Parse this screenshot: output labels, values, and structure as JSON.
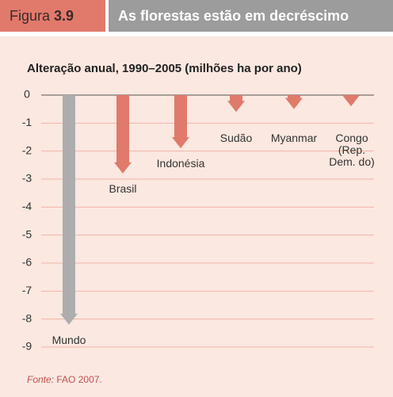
{
  "figure_label": "Figura",
  "figure_number": "3.9",
  "heading": "As florestas estão em decréscimo",
  "source_label": "Fonte:",
  "source": "FAO 2007.",
  "chart_data": {
    "type": "arrow-bar",
    "title": "Alteração anual, 1990–2005 (milhões ha por ano)",
    "categories": [
      "Mundo",
      "Brasil",
      "Indonésia",
      "Sudão",
      "Myanmar",
      "Congo (Rep. Dem. do)"
    ],
    "values": [
      -8.2,
      -2.8,
      -1.9,
      -0.6,
      -0.5,
      -0.4
    ],
    "colors": [
      "#adadb0",
      "#e07a6b",
      "#e07a6b",
      "#e07a6b",
      "#e07a6b",
      "#e07a6b"
    ],
    "ylim": [
      -9,
      0
    ],
    "yticks": [
      0,
      -1,
      -2,
      -3,
      -4,
      -5,
      -6,
      -7,
      -8,
      -9
    ],
    "grid": true
  }
}
